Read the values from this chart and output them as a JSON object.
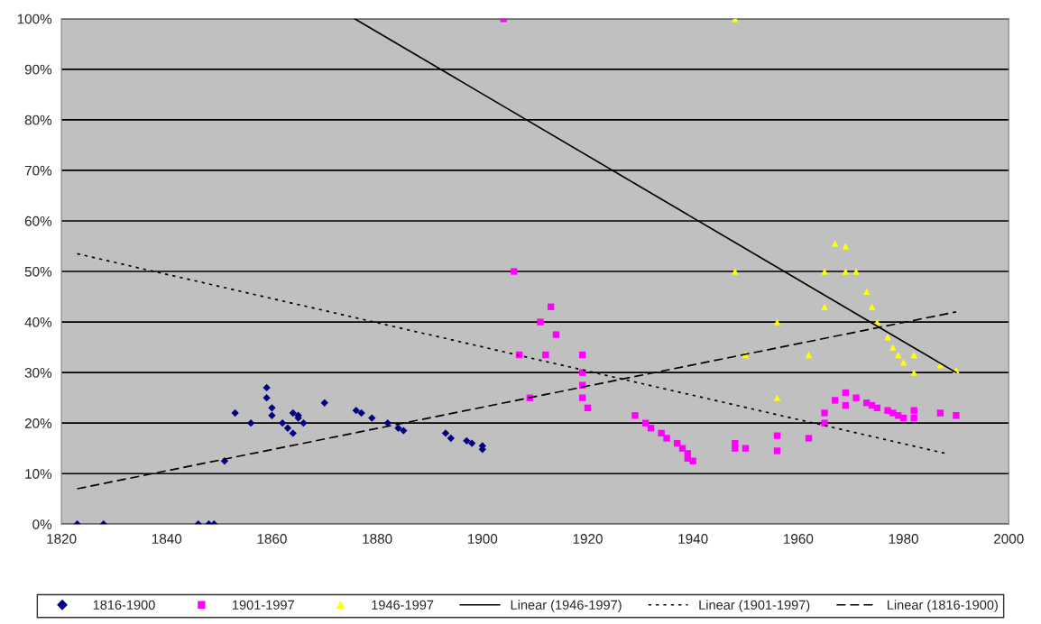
{
  "chart_data": {
    "type": "scatter",
    "xlim": [
      1820,
      2000
    ],
    "xticks": [
      1820,
      1840,
      1860,
      1880,
      1900,
      1920,
      1940,
      1960,
      1980,
      2000
    ],
    "ylim": [
      0,
      100
    ],
    "yticks": [
      {
        "value": 0,
        "label": "0%"
      },
      {
        "value": 10,
        "label": "10%"
      },
      {
        "value": 20,
        "label": "20%"
      },
      {
        "value": 30,
        "label": "30%"
      },
      {
        "value": 40,
        "label": "40%"
      },
      {
        "value": 50,
        "label": "50%"
      },
      {
        "value": 60,
        "label": "60%"
      },
      {
        "value": 70,
        "label": "70%"
      },
      {
        "value": 80,
        "label": "80%"
      },
      {
        "value": 90,
        "label": "90%"
      },
      {
        "value": 100,
        "label": "100%"
      }
    ],
    "grid": "y",
    "legend": "bottom",
    "series": [
      {
        "name": "1816-1900",
        "marker": "diamond",
        "color": "#000080",
        "x": [
          1823,
          1828,
          1846,
          1848,
          1849,
          1851,
          1853,
          1856,
          1859,
          1859,
          1860,
          1860,
          1862,
          1863,
          1864,
          1864,
          1865,
          1865,
          1866,
          1870,
          1876,
          1877,
          1879,
          1882,
          1884,
          1885,
          1893,
          1894,
          1897,
          1898,
          1900,
          1900
        ],
        "values": [
          0,
          0,
          0,
          0,
          0,
          12.5,
          22,
          20,
          27,
          25,
          23,
          21.5,
          20,
          19,
          18,
          22,
          21.5,
          21,
          20,
          24,
          22.5,
          22,
          21,
          20,
          19,
          18.5,
          18,
          17,
          16.5,
          16,
          15.5,
          14.8
        ]
      },
      {
        "name": "1901-1997",
        "marker": "square",
        "color": "#ff00ff",
        "x": [
          1904,
          1906,
          1907,
          1909,
          1911,
          1912,
          1913,
          1914,
          1919,
          1919,
          1919,
          1919,
          1920,
          1929,
          1931,
          1932,
          1934,
          1935,
          1937,
          1938,
          1939,
          1939,
          1940,
          1948,
          1948,
          1950,
          1956,
          1956,
          1962,
          1965,
          1965,
          1967,
          1969,
          1969,
          1971,
          1973,
          1974,
          1975,
          1977,
          1978,
          1979,
          1980,
          1982,
          1982,
          1987,
          1990
        ],
        "values": [
          100,
          50,
          33.5,
          25,
          40,
          33.5,
          43,
          37.5,
          33.5,
          30,
          27.5,
          25,
          23,
          21.5,
          20,
          19,
          18,
          17,
          16,
          15,
          14,
          13,
          12.5,
          16,
          15,
          15,
          17.5,
          14.5,
          17,
          22,
          20,
          24.5,
          26,
          23.5,
          25,
          24,
          23.5,
          23,
          22.5,
          22,
          21.5,
          21,
          22.5,
          21,
          22,
          21.5
        ]
      },
      {
        "name": "1946-1997",
        "marker": "triangle",
        "color": "#ffff00",
        "x": [
          1948,
          1948,
          1950,
          1956,
          1956,
          1962,
          1965,
          1965,
          1967,
          1969,
          1969,
          1971,
          1973,
          1974,
          1975,
          1977,
          1978,
          1979,
          1980,
          1982,
          1982,
          1987,
          1990
        ],
        "values": [
          100,
          50,
          33.5,
          40,
          25,
          33.5,
          50,
          43,
          55.5,
          55,
          50,
          50,
          46,
          43,
          40,
          37,
          35,
          33.5,
          32,
          30,
          33.5,
          31.5,
          30.5
        ]
      },
      {
        "name": "Linear (1946-1997)",
        "type": "line",
        "line_style": "solid",
        "marker": "none",
        "color": "#000000",
        "x": [
          1875.7,
          1990
        ],
        "values": [
          100,
          30
        ]
      },
      {
        "name": "Linear (1901-1997)",
        "type": "line",
        "line_style": "dotted",
        "marker": "none",
        "color": "#000000",
        "x": [
          1823,
          1988
        ],
        "values": [
          53.5,
          14
        ]
      },
      {
        "name": "Linear (1816-1900)",
        "type": "line",
        "line_style": "dashed",
        "marker": "none",
        "color": "#000000",
        "x": [
          1823,
          1990
        ],
        "values": [
          7,
          42
        ]
      }
    ]
  }
}
